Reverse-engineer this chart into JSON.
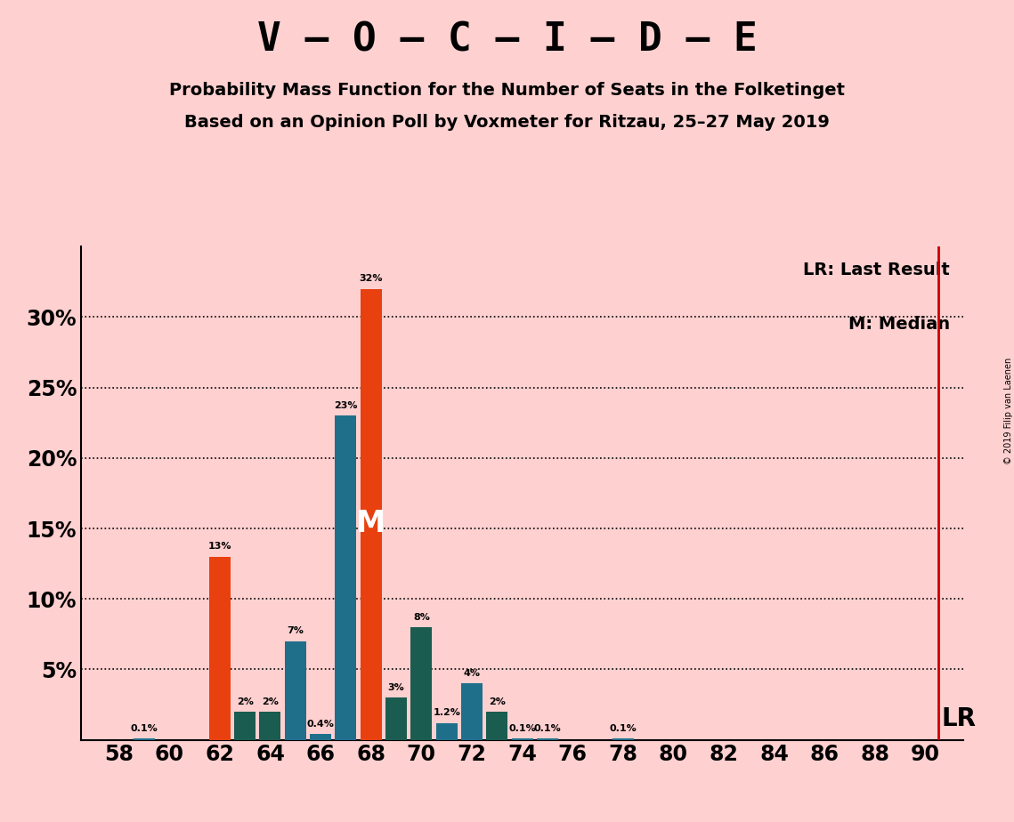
{
  "title_main": "V – O – C – I – D – E",
  "subtitle1": "Probability Mass Function for the Number of Seats in the Folketinget",
  "subtitle2": "Based on an Opinion Poll by Voxmeter for Ritzau, 25–27 May 2019",
  "copyright": "© 2019 Filip van Laenen",
  "background_color": "#ffd0d0",
  "seats_data": {
    "58": [
      0.0,
      "#1f6f8b"
    ],
    "59": [
      0.1,
      "#1f6f8b"
    ],
    "60": [
      0.0,
      "#1f6f8b"
    ],
    "61": [
      0.0,
      "#1f6f8b"
    ],
    "62": [
      13.0,
      "#e8410f"
    ],
    "63": [
      2.0,
      "#1a5c50"
    ],
    "64": [
      2.0,
      "#1a5c50"
    ],
    "65": [
      7.0,
      "#1f6f8b"
    ],
    "66": [
      0.4,
      "#1f6f8b"
    ],
    "67": [
      23.0,
      "#1f6f8b"
    ],
    "68": [
      32.0,
      "#e8410f"
    ],
    "69": [
      3.0,
      "#1a5c50"
    ],
    "70": [
      8.0,
      "#1a5c50"
    ],
    "71": [
      1.2,
      "#1f6f8b"
    ],
    "72": [
      4.0,
      "#1f6f8b"
    ],
    "73": [
      2.0,
      "#1a5c50"
    ],
    "74": [
      0.1,
      "#1f6f8b"
    ],
    "75": [
      0.1,
      "#1f6f8b"
    ],
    "76": [
      0.0,
      "#1f6f8b"
    ],
    "77": [
      0.0,
      "#1f6f8b"
    ],
    "78": [
      0.1,
      "#1f6f8b"
    ],
    "79": [
      0.0,
      "#1f6f8b"
    ],
    "80": [
      0.0,
      "#1f6f8b"
    ],
    "81": [
      0.0,
      "#1f6f8b"
    ],
    "82": [
      0.0,
      "#1f6f8b"
    ],
    "83": [
      0.0,
      "#1f6f8b"
    ],
    "84": [
      0.0,
      "#1f6f8b"
    ],
    "85": [
      0.0,
      "#1f6f8b"
    ],
    "86": [
      0.0,
      "#1f6f8b"
    ],
    "87": [
      0.0,
      "#1f6f8b"
    ],
    "88": [
      0.0,
      "#1f6f8b"
    ],
    "89": [
      0.0,
      "#1f6f8b"
    ],
    "90": [
      0.0,
      "#1f6f8b"
    ]
  },
  "last_result_seat": 90,
  "median_seat": 68,
  "lr_line_color": "#cc0000",
  "ymax": 35,
  "ytick_vals": [
    5,
    10,
    15,
    20,
    25,
    30
  ],
  "ytick_labels": [
    "5%",
    "10%",
    "15%",
    "20%",
    "25%",
    "30%"
  ],
  "xtick_seats": [
    58,
    60,
    62,
    64,
    66,
    68,
    70,
    72,
    74,
    76,
    78,
    80,
    82,
    84,
    86,
    88,
    90
  ],
  "xlim_left": 56.5,
  "xlim_right": 91.5,
  "bar_width": 0.85
}
